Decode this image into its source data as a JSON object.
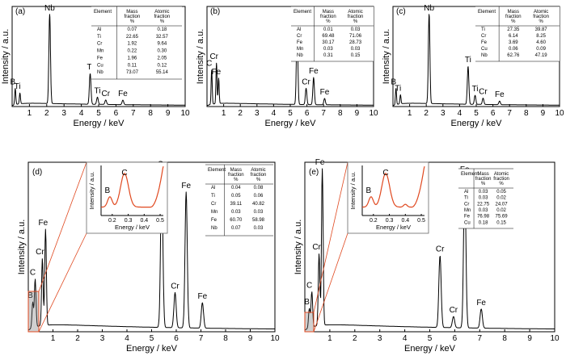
{
  "chart_data": [
    {
      "type": "line",
      "panel": "(a)",
      "xlabel": "Energy / keV",
      "ylabel": "Intensity / a.u.",
      "xlim": [
        0,
        10
      ],
      "xticks": [
        1,
        2,
        3,
        4,
        5,
        6,
        7,
        8,
        9,
        10
      ],
      "peaks": [
        {
          "label": "B",
          "x": 0.18,
          "y": 0.18
        },
        {
          "label": "Ti",
          "x": 0.45,
          "y": 0.12
        },
        {
          "label": "Nb",
          "x": 2.17,
          "y": 1.0
        },
        {
          "label": "Ti",
          "x": 4.51,
          "y": 0.34
        },
        {
          "label": "Ti",
          "x": 4.93,
          "y": 0.08
        },
        {
          "label": "Cr",
          "x": 5.41,
          "y": 0.05
        },
        {
          "label": "Fe",
          "x": 6.4,
          "y": 0.05
        }
      ],
      "table": {
        "headers": [
          "Element",
          "Mass fraction %",
          "Atomic fraction %"
        ],
        "rows": [
          [
            "Al",
            "0.07",
            "0.18"
          ],
          [
            "Ti",
            "22.65",
            "32.57"
          ],
          [
            "Cr",
            "1.92",
            "9.64"
          ],
          [
            "Mn",
            "0.22",
            "0.30"
          ],
          [
            "Fe",
            "1.96",
            "2.05"
          ],
          [
            "Cu",
            "0.11",
            "0.12"
          ],
          [
            "Nb",
            "73.07",
            "55.14"
          ]
        ]
      }
    },
    {
      "type": "line",
      "panel": "(b)",
      "xlabel": "Energy / keV",
      "ylabel": "Intensity / a.u.",
      "xlim": [
        0,
        10
      ],
      "xticks": [
        1,
        2,
        3,
        4,
        5,
        6,
        7,
        8,
        9,
        10
      ],
      "peaks": [
        {
          "label": "C",
          "x": 0.28,
          "y": 0.38
        },
        {
          "label": "Cr",
          "x": 0.57,
          "y": 0.45
        },
        {
          "label": "Fe",
          "x": 0.7,
          "y": 0.28
        },
        {
          "label": "Cr",
          "x": 5.41,
          "y": 0.85
        },
        {
          "label": "Cr",
          "x": 5.95,
          "y": 0.18
        },
        {
          "label": "Fe",
          "x": 6.4,
          "y": 0.3
        },
        {
          "label": "Fe",
          "x": 7.06,
          "y": 0.07
        }
      ],
      "table": {
        "headers": [
          "Element",
          "Mass fraction %",
          "Atomic fraction %"
        ],
        "rows": [
          [
            "Al",
            "0.01",
            "0.03"
          ],
          [
            "Cr",
            "69.48",
            "71.06"
          ],
          [
            "Fe",
            "30.17",
            "28.73"
          ],
          [
            "Mn",
            "0.03",
            "0.03"
          ],
          [
            "Nb",
            "0.31",
            "0.15"
          ]
        ]
      }
    },
    {
      "type": "line",
      "panel": "(c)",
      "xlabel": "Energy / keV",
      "ylabel": "Intensity / a.u.",
      "xlim": [
        0,
        10
      ],
      "xticks": [
        1,
        2,
        3,
        4,
        5,
        6,
        7,
        8,
        9,
        10
      ],
      "peaks": [
        {
          "label": "B",
          "x": 0.18,
          "y": 0.18
        },
        {
          "label": "Ti",
          "x": 0.45,
          "y": 0.1
        },
        {
          "label": "Nb",
          "x": 2.17,
          "y": 1.0
        },
        {
          "label": "Ti",
          "x": 4.51,
          "y": 0.42
        },
        {
          "label": "Ti",
          "x": 4.93,
          "y": 0.1
        },
        {
          "label": "Cr",
          "x": 5.41,
          "y": 0.07
        },
        {
          "label": "Fe",
          "x": 6.4,
          "y": 0.04
        }
      ],
      "table": {
        "headers": [
          "Element",
          "Mass fraction %",
          "Atomic fraction %"
        ],
        "rows": [
          [
            "Ti",
            "27.35",
            "39.87"
          ],
          [
            "Cr",
            "6.14",
            "8.25"
          ],
          [
            "Fe",
            "3.69",
            "4.60"
          ],
          [
            "Cu",
            "0.06",
            "0.09"
          ],
          [
            "Nb",
            "62.76",
            "47.19"
          ]
        ]
      }
    },
    {
      "type": "line",
      "panel": "(d)",
      "xlabel": "Energy / keV",
      "ylabel": "Intensity / a.u.",
      "xlim": [
        0,
        10
      ],
      "xticks": [
        1,
        2,
        3,
        4,
        5,
        6,
        7,
        8,
        9,
        10
      ],
      "peaks": [
        {
          "label": "B",
          "x": 0.18,
          "y": 0.16
        },
        {
          "label": "C",
          "x": 0.28,
          "y": 0.3
        },
        {
          "label": "Cr",
          "x": 0.57,
          "y": 0.42
        },
        {
          "label": "Fe",
          "x": 0.7,
          "y": 0.6
        },
        {
          "label": "Cr",
          "x": 5.41,
          "y": 0.98
        },
        {
          "label": "Cr",
          "x": 5.95,
          "y": 0.22
        },
        {
          "label": "Fe",
          "x": 6.4,
          "y": 0.85
        },
        {
          "label": "Fe",
          "x": 7.06,
          "y": 0.16
        }
      ],
      "inset": {
        "xlabel": "Energy / keV",
        "ylabel": "Intensity / a.u.",
        "xticks": [
          0.2,
          0.3,
          0.4,
          0.5
        ],
        "labels": [
          "B",
          "C"
        ]
      },
      "table": {
        "headers": [
          "Element",
          "Mass fraction %",
          "Atomic fraction %"
        ],
        "rows": [
          [
            "Al",
            "0.04",
            "0.08"
          ],
          [
            "Ti",
            "0.05",
            "0.06"
          ],
          [
            "Cr",
            "39.11",
            "40.82"
          ],
          [
            "Mn",
            "0.03",
            "0.03"
          ],
          [
            "Fe",
            "60.70",
            "58.98"
          ],
          [
            "Nb",
            "0.07",
            "0.03"
          ]
        ]
      }
    },
    {
      "type": "line",
      "panel": "(e)",
      "xlabel": "Energy / keV",
      "ylabel": "Intensity / a.u.",
      "xlim": [
        0,
        10
      ],
      "xticks": [
        1,
        2,
        3,
        4,
        5,
        6,
        7,
        8,
        9,
        10
      ],
      "peaks": [
        {
          "label": "B",
          "x": 0.18,
          "y": 0.12
        },
        {
          "label": "C",
          "x": 0.28,
          "y": 0.22
        },
        {
          "label": "Cr",
          "x": 0.57,
          "y": 0.45
        },
        {
          "label": "Fe",
          "x": 0.7,
          "y": 1.0
        },
        {
          "label": "Cr",
          "x": 5.41,
          "y": 0.45
        },
        {
          "label": "Cr",
          "x": 5.95,
          "y": 0.07
        },
        {
          "label": "Fe",
          "x": 6.4,
          "y": 0.95
        },
        {
          "label": "Fe",
          "x": 7.06,
          "y": 0.12
        }
      ],
      "inset": {
        "xlabel": "Energy / keV",
        "ylabel": "Intensity / a.u.",
        "xticks": [
          0.2,
          0.3,
          0.4,
          0.5
        ],
        "labels": [
          "B",
          "C"
        ]
      },
      "table": {
        "headers": [
          "Element",
          "Mass fraction %",
          "Atomic fraction %"
        ],
        "rows": [
          [
            "Al",
            "0.03",
            "0.05"
          ],
          [
            "Ti",
            "0.03",
            "0.02"
          ],
          [
            "Cr",
            "22.75",
            "24.07"
          ],
          [
            "Mn",
            "0.03",
            "0.02"
          ],
          [
            "Fe",
            "76.98",
            "75.69"
          ],
          [
            "Cu",
            "0.18",
            "0.15"
          ]
        ]
      }
    }
  ]
}
